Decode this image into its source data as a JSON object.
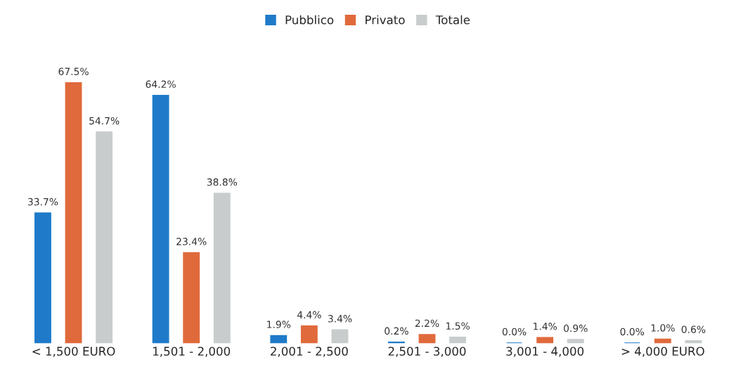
{
  "chart_data": {
    "type": "bar",
    "categories": [
      "< 1,500 EURO",
      "1,501 - 2,000",
      "2,001 - 2,500",
      "2,501 - 3,000",
      "3,001 - 4,000",
      "> 4,000 EURO"
    ],
    "series": [
      {
        "name": "Pubblico",
        "color": "#1f7bc9",
        "values": [
          33.7,
          64.2,
          1.9,
          0.2,
          0.0,
          0.0
        ],
        "value_labels": [
          "33.7%",
          "64.2%",
          "1.9%",
          "0.2%",
          "0.0%",
          "0.0%"
        ]
      },
      {
        "name": "Privato",
        "color": "#e06a3c",
        "values": [
          67.5,
          23.4,
          4.4,
          2.2,
          1.4,
          1.0
        ],
        "value_labels": [
          "67.5%",
          "23.4%",
          "4.4%",
          "2.2%",
          "1.4%",
          "1.0%"
        ]
      },
      {
        "name": "Totale",
        "color": "#c8cccc",
        "values": [
          54.7,
          38.8,
          3.4,
          1.5,
          0.9,
          0.6
        ],
        "value_labels": [
          "54.7%",
          "38.8%",
          "3.4%",
          "1.5%",
          "0.9%",
          "0.6%"
        ]
      }
    ],
    "legend": "top",
    "grid": false
  }
}
